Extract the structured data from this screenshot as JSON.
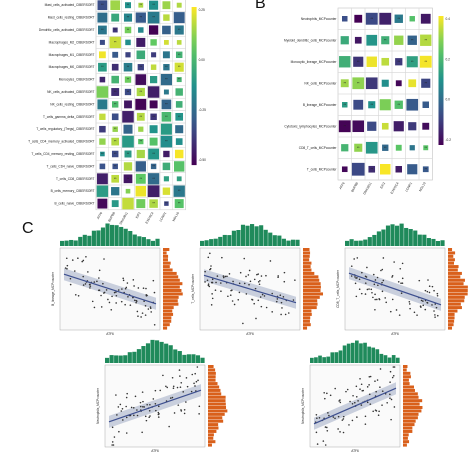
{
  "panels": {
    "b": "B",
    "c": "C"
  },
  "panel_a": {
    "rows": [
      "Mast_cells_activated_CIBERSORT",
      "Mast_cells_resting_CIBERSORT",
      "Dendritic_cells_activated_CIBERSORT",
      "Macrophages_M2_CIBERSORT",
      "Macrophages_M1_CIBERSORT",
      "Macrophages_M0_CIBERSORT",
      "Monocytes_CIBERSORT",
      "NK_cells_activated_CIBERSORT",
      "NK_cells_resting_CIBERSORT",
      "T_cells_gamma_delta_CIBERSORT",
      "T_cells_regulatory_(Tregs)_CIBERSORT",
      "T_cells_CD4_memory_activated_CIBERSORT",
      "T_cells_CD4_memory_resting_CIBERSORT",
      "T_cells_CD4_naive_CIBERSORT",
      "T_cells_CD8_CIBERSORT",
      "B_cells_memory_CIBERSORT",
      "B_cells_naive_CIBERSORT"
    ],
    "cols": [
      "ATF6",
      "BMP8B",
      "DNAJB11",
      "EIF2",
      "EXOSC4",
      "LONP1",
      "NOL10"
    ],
    "legend_ticks": [
      "0.25",
      "0.00",
      "-0.25",
      "-0.50"
    ]
  },
  "panel_b": {
    "rows": [
      "Neutrophils_MCPcounter",
      "Myeloid_dendritic_cells_MCPcounter",
      "Monocytic_lineage_MCPcounter",
      "NK_cells_MCPcounter",
      "B_lineage_MCPcounter",
      "Cytotoxic_lymphocytes_MCPcounter",
      "CD8_T_cells_MCPcounter",
      "T_cells_MCPcounter"
    ],
    "cols": [
      "ATF6",
      "BMP8B",
      "DNAJB11",
      "EIF2",
      "EXOSC4",
      "LONP1",
      "NOL10"
    ],
    "legend_ticks": [
      "0.4",
      "0.2",
      "0.0",
      "-0.2"
    ]
  },
  "panel_c": {
    "plots": [
      {
        "ylabel": "B_lineage_MCPcounter",
        "xlabel": "ATF6",
        "slope": -0.28,
        "seed": 11
      },
      {
        "ylabel": "T_cells_MCPcounter",
        "xlabel": "ATF6",
        "slope": -0.26,
        "seed": 23
      },
      {
        "ylabel": "CD8_T_cells_MCPcounter",
        "xlabel": "ATF6",
        "slope": -0.3,
        "seed": 37
      },
      {
        "ylabel": "Neutrophils_MCPcounter",
        "xlabel": "ATF6",
        "slope": 0.3,
        "seed": 51
      },
      {
        "ylabel": "Neutrophils_MCPcounter",
        "xlabel": "ATF6",
        "slope": 0.34,
        "seed": 67
      }
    ]
  },
  "colors": {
    "hist_top": "#1f8a5b",
    "hist_right": "#d9601b",
    "points": "#333333",
    "fit_line": "#3d4f8f",
    "ci_band": "#a9b2c9"
  }
}
